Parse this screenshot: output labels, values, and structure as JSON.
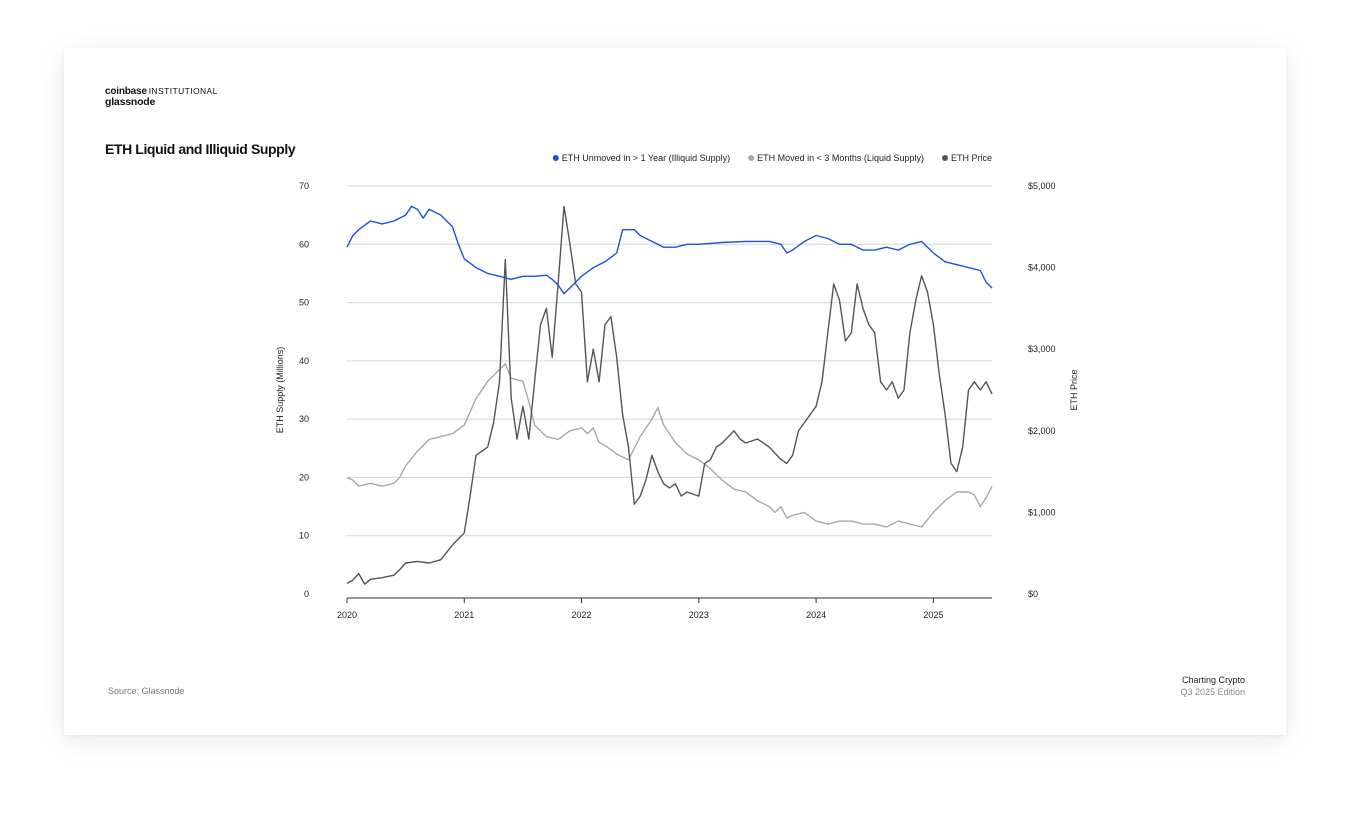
{
  "header": {
    "brand_main": "coinbase",
    "brand_sub": "INSTITUTIONAL",
    "brand_partner": "glassnode",
    "title": "ETH Liquid and Illiquid Supply"
  },
  "footer": {
    "source": "Source: Glassnode",
    "publication": "Charting Crypto",
    "edition": "Q3 2025 Edition"
  },
  "colors": {
    "illiquid": "#1f4fe0",
    "liquid": "#a8a8a8",
    "price": "#555555",
    "grid": "#c9dada"
  },
  "chart_data": {
    "type": "line",
    "title": "ETH Liquid and Illiquid Supply",
    "xlabel": "",
    "ylabel": "ETH Supply (Millions)",
    "y2label": "ETH Price",
    "xlim": [
      2020.0,
      2025.5
    ],
    "ylim": [
      0,
      70
    ],
    "y2lim": [
      0,
      5000
    ],
    "x_ticks": [
      "2020",
      "2021",
      "2022",
      "2023",
      "2024",
      "2025"
    ],
    "y_ticks": [
      "0",
      "10",
      "20",
      "30",
      "40",
      "50",
      "60",
      "70"
    ],
    "y2_ticks": [
      "$0",
      "$1,000",
      "$2,000",
      "$3,000",
      "$4,000",
      "$5,000"
    ],
    "grid": true,
    "legend_position": "top-right",
    "series": [
      {
        "name": "ETH Unmoved in > 1 Year (Illiquid Supply)",
        "axis": "left",
        "points": [
          [
            2020.0,
            59.5
          ],
          [
            2020.05,
            61.5
          ],
          [
            2020.1,
            62.5
          ],
          [
            2020.2,
            64
          ],
          [
            2020.3,
            63.5
          ],
          [
            2020.4,
            64
          ],
          [
            2020.5,
            65
          ],
          [
            2020.55,
            66.5
          ],
          [
            2020.6,
            66
          ],
          [
            2020.65,
            64.5
          ],
          [
            2020.7,
            66
          ],
          [
            2020.8,
            65
          ],
          [
            2020.9,
            63
          ],
          [
            2020.95,
            60
          ],
          [
            2021.0,
            57.5
          ],
          [
            2021.1,
            56
          ],
          [
            2021.2,
            55
          ],
          [
            2021.3,
            54.5
          ],
          [
            2021.4,
            54
          ],
          [
            2021.5,
            54.5
          ],
          [
            2021.6,
            54.5
          ],
          [
            2021.7,
            54.7
          ],
          [
            2021.75,
            54
          ],
          [
            2021.8,
            53
          ],
          [
            2021.85,
            51.5
          ],
          [
            2021.9,
            52.5
          ],
          [
            2021.95,
            53.5
          ],
          [
            2022.0,
            54.5
          ],
          [
            2022.1,
            56
          ],
          [
            2022.2,
            57
          ],
          [
            2022.3,
            58.5
          ],
          [
            2022.35,
            62.5
          ],
          [
            2022.45,
            62.5
          ],
          [
            2022.5,
            61.5
          ],
          [
            2022.6,
            60.5
          ],
          [
            2022.7,
            59.5
          ],
          [
            2022.8,
            59.5
          ],
          [
            2022.9,
            60
          ],
          [
            2023.0,
            60
          ],
          [
            2023.2,
            60.3
          ],
          [
            2023.4,
            60.5
          ],
          [
            2023.6,
            60.5
          ],
          [
            2023.7,
            60
          ],
          [
            2023.75,
            58.5
          ],
          [
            2023.8,
            59
          ],
          [
            2023.9,
            60.5
          ],
          [
            2024.0,
            61.5
          ],
          [
            2024.1,
            61
          ],
          [
            2024.2,
            60
          ],
          [
            2024.3,
            60
          ],
          [
            2024.4,
            59
          ],
          [
            2024.5,
            59
          ],
          [
            2024.6,
            59.5
          ],
          [
            2024.7,
            59
          ],
          [
            2024.8,
            60
          ],
          [
            2024.9,
            60.5
          ],
          [
            2025.0,
            58.5
          ],
          [
            2025.1,
            57
          ],
          [
            2025.2,
            56.5
          ],
          [
            2025.3,
            56
          ],
          [
            2025.4,
            55.5
          ],
          [
            2025.45,
            53.5
          ],
          [
            2025.5,
            52.5
          ]
        ]
      },
      {
        "name": "ETH Moved in < 3 Months (Liquid Supply)",
        "axis": "left",
        "points": [
          [
            2020.0,
            20
          ],
          [
            2020.05,
            19.5
          ],
          [
            2020.1,
            18.5
          ],
          [
            2020.2,
            19
          ],
          [
            2020.3,
            18.5
          ],
          [
            2020.4,
            19
          ],
          [
            2020.45,
            20
          ],
          [
            2020.5,
            22
          ],
          [
            2020.6,
            24.5
          ],
          [
            2020.7,
            26.5
          ],
          [
            2020.8,
            27
          ],
          [
            2020.9,
            27.5
          ],
          [
            2021.0,
            29
          ],
          [
            2021.1,
            33.5
          ],
          [
            2021.2,
            36.5
          ],
          [
            2021.3,
            38.5
          ],
          [
            2021.35,
            39.5
          ],
          [
            2021.4,
            37
          ],
          [
            2021.5,
            36.5
          ],
          [
            2021.55,
            33
          ],
          [
            2021.6,
            29
          ],
          [
            2021.7,
            27
          ],
          [
            2021.8,
            26.5
          ],
          [
            2021.9,
            28
          ],
          [
            2022.0,
            28.5
          ],
          [
            2022.05,
            27.5
          ],
          [
            2022.1,
            28.5
          ],
          [
            2022.15,
            26
          ],
          [
            2022.2,
            25.5
          ],
          [
            2022.3,
            24
          ],
          [
            2022.4,
            23
          ],
          [
            2022.5,
            27
          ],
          [
            2022.6,
            30
          ],
          [
            2022.65,
            32
          ],
          [
            2022.7,
            29
          ],
          [
            2022.8,
            26
          ],
          [
            2022.9,
            24
          ],
          [
            2023.0,
            23
          ],
          [
            2023.1,
            21.5
          ],
          [
            2023.2,
            19.5
          ],
          [
            2023.3,
            18
          ],
          [
            2023.4,
            17.5
          ],
          [
            2023.5,
            16
          ],
          [
            2023.6,
            15
          ],
          [
            2023.65,
            14
          ],
          [
            2023.7,
            15
          ],
          [
            2023.75,
            13
          ],
          [
            2023.8,
            13.5
          ],
          [
            2023.9,
            14
          ],
          [
            2024.0,
            12.5
          ],
          [
            2024.1,
            12
          ],
          [
            2024.2,
            12.5
          ],
          [
            2024.3,
            12.5
          ],
          [
            2024.4,
            12
          ],
          [
            2024.5,
            12
          ],
          [
            2024.6,
            11.5
          ],
          [
            2024.7,
            12.5
          ],
          [
            2024.8,
            12
          ],
          [
            2024.9,
            11.5
          ],
          [
            2025.0,
            14
          ],
          [
            2025.1,
            16
          ],
          [
            2025.2,
            17.5
          ],
          [
            2025.3,
            17.5
          ],
          [
            2025.35,
            17
          ],
          [
            2025.4,
            15
          ],
          [
            2025.45,
            16.5
          ],
          [
            2025.5,
            18.5
          ]
        ]
      },
      {
        "name": "ETH Price",
        "axis": "right",
        "points": [
          [
            2020.0,
            130
          ],
          [
            2020.05,
            170
          ],
          [
            2020.1,
            250
          ],
          [
            2020.15,
            120
          ],
          [
            2020.2,
            180
          ],
          [
            2020.3,
            200
          ],
          [
            2020.4,
            230
          ],
          [
            2020.45,
            300
          ],
          [
            2020.5,
            380
          ],
          [
            2020.6,
            400
          ],
          [
            2020.7,
            380
          ],
          [
            2020.8,
            420
          ],
          [
            2020.9,
            600
          ],
          [
            2021.0,
            750
          ],
          [
            2021.05,
            1200
          ],
          [
            2021.1,
            1700
          ],
          [
            2021.2,
            1800
          ],
          [
            2021.25,
            2100
          ],
          [
            2021.3,
            2600
          ],
          [
            2021.35,
            4100
          ],
          [
            2021.4,
            2400
          ],
          [
            2021.45,
            1900
          ],
          [
            2021.5,
            2300
          ],
          [
            2021.55,
            1900
          ],
          [
            2021.6,
            2600
          ],
          [
            2021.65,
            3300
          ],
          [
            2021.7,
            3500
          ],
          [
            2021.75,
            2900
          ],
          [
            2021.8,
            3800
          ],
          [
            2021.85,
            4750
          ],
          [
            2021.9,
            4300
          ],
          [
            2021.95,
            3800
          ],
          [
            2022.0,
            3700
          ],
          [
            2022.05,
            2600
          ],
          [
            2022.1,
            3000
          ],
          [
            2022.15,
            2600
          ],
          [
            2022.2,
            3300
          ],
          [
            2022.25,
            3400
          ],
          [
            2022.3,
            2900
          ],
          [
            2022.35,
            2200
          ],
          [
            2022.4,
            1800
          ],
          [
            2022.45,
            1100
          ],
          [
            2022.5,
            1200
          ],
          [
            2022.55,
            1400
          ],
          [
            2022.6,
            1700
          ],
          [
            2022.65,
            1500
          ],
          [
            2022.7,
            1350
          ],
          [
            2022.75,
            1300
          ],
          [
            2022.8,
            1350
          ],
          [
            2022.85,
            1200
          ],
          [
            2022.9,
            1250
          ],
          [
            2023.0,
            1200
          ],
          [
            2023.05,
            1600
          ],
          [
            2023.1,
            1650
          ],
          [
            2023.15,
            1800
          ],
          [
            2023.2,
            1850
          ],
          [
            2023.3,
            2000
          ],
          [
            2023.35,
            1900
          ],
          [
            2023.4,
            1850
          ],
          [
            2023.5,
            1900
          ],
          [
            2023.6,
            1800
          ],
          [
            2023.7,
            1650
          ],
          [
            2023.75,
            1600
          ],
          [
            2023.8,
            1700
          ],
          [
            2023.85,
            2000
          ],
          [
            2023.9,
            2100
          ],
          [
            2024.0,
            2300
          ],
          [
            2024.05,
            2600
          ],
          [
            2024.1,
            3200
          ],
          [
            2024.15,
            3800
          ],
          [
            2024.2,
            3600
          ],
          [
            2024.25,
            3100
          ],
          [
            2024.3,
            3200
          ],
          [
            2024.35,
            3800
          ],
          [
            2024.4,
            3500
          ],
          [
            2024.45,
            3300
          ],
          [
            2024.5,
            3200
          ],
          [
            2024.55,
            2600
          ],
          [
            2024.6,
            2500
          ],
          [
            2024.65,
            2600
          ],
          [
            2024.7,
            2400
          ],
          [
            2024.75,
            2500
          ],
          [
            2024.8,
            3200
          ],
          [
            2024.85,
            3600
          ],
          [
            2024.9,
            3900
          ],
          [
            2024.95,
            3700
          ],
          [
            2025.0,
            3300
          ],
          [
            2025.05,
            2700
          ],
          [
            2025.1,
            2200
          ],
          [
            2025.15,
            1600
          ],
          [
            2025.2,
            1500
          ],
          [
            2025.25,
            1800
          ],
          [
            2025.3,
            2500
          ],
          [
            2025.35,
            2600
          ],
          [
            2025.4,
            2500
          ],
          [
            2025.45,
            2600
          ],
          [
            2025.5,
            2450
          ]
        ]
      }
    ]
  }
}
